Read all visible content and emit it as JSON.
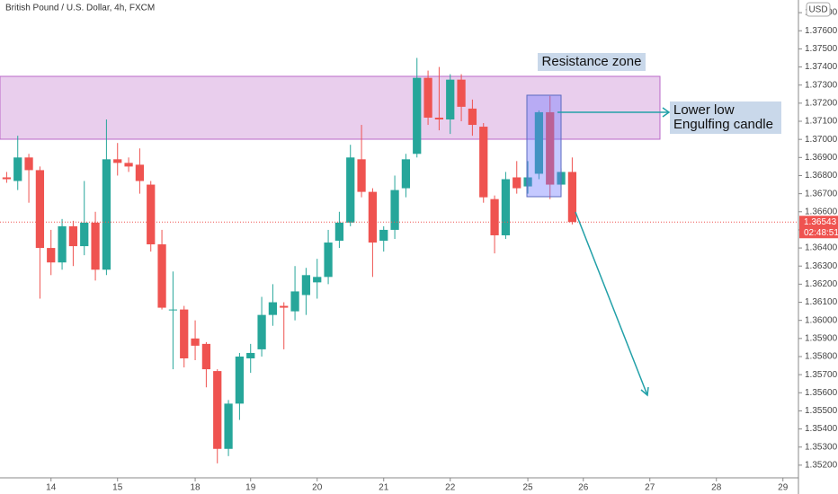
{
  "chart_data": {
    "type": "candlestick",
    "title": "British Pound / U.S. Dollar, 4h, FXCM",
    "currency": "USD",
    "timer": "02:48:51",
    "last_price": 1.36543,
    "annotations": [
      "Resistance zone",
      "Lower low",
      "Engulfing candle"
    ],
    "up_color": "#26a69a",
    "down_color": "#ef5350",
    "grid": false,
    "x": [
      0,
      1,
      2,
      3,
      4,
      5,
      6,
      7,
      8,
      9,
      10,
      11,
      12,
      13,
      14,
      15,
      16,
      17,
      18,
      19,
      20,
      21,
      22,
      23,
      24,
      25,
      26,
      27,
      28,
      29,
      30,
      31,
      32,
      33,
      34,
      35,
      36,
      37,
      38,
      39,
      40,
      41,
      42,
      43,
      44,
      45,
      46,
      47,
      48,
      49,
      50,
      51
    ],
    "open": [
      1.3679,
      1.3677,
      1.369,
      1.3683,
      1.364,
      1.3632,
      1.3652,
      1.3641,
      1.3654,
      1.3628,
      1.3689,
      1.3687,
      1.3686,
      1.3675,
      1.3642,
      1.3606,
      1.3606,
      1.359,
      1.3587,
      1.3572,
      1.3529,
      1.3554,
      1.3579,
      1.3584,
      1.3603,
      1.3608,
      1.3605,
      1.3614,
      1.3621,
      1.3624,
      1.3644,
      1.3654,
      1.3689,
      1.3671,
      1.3644,
      1.365,
      1.3673,
      1.3692,
      1.3734,
      1.3712,
      1.3711,
      1.3733,
      1.3717,
      1.3707,
      1.3667,
      1.3647,
      1.3679,
      1.3674,
      1.3681,
      1.3715,
      1.3675,
      1.3682
    ],
    "high": [
      1.3682,
      1.3702,
      1.3692,
      1.3685,
      1.365,
      1.3656,
      1.3655,
      1.3677,
      1.366,
      1.3711,
      1.3698,
      1.369,
      1.3695,
      1.3677,
      1.365,
      1.3627,
      1.3608,
      1.36,
      1.3588,
      1.3573,
      1.3556,
      1.3582,
      1.3587,
      1.3613,
      1.362,
      1.361,
      1.363,
      1.3629,
      1.3634,
      1.365,
      1.366,
      1.3697,
      1.3708,
      1.3673,
      1.3652,
      1.368,
      1.3692,
      1.3745,
      1.3738,
      1.374,
      1.3736,
      1.3736,
      1.3722,
      1.3709,
      1.3669,
      1.3682,
      1.3688,
      1.3688,
      1.3716,
      1.3724,
      1.3684,
      1.369
    ],
    "low": [
      1.3676,
      1.3672,
      1.3665,
      1.3612,
      1.3625,
      1.3628,
      1.363,
      1.3636,
      1.3622,
      1.3625,
      1.368,
      1.3682,
      1.367,
      1.3638,
      1.3606,
      1.3573,
      1.3574,
      1.3578,
      1.3563,
      1.3521,
      1.3525,
      1.3545,
      1.3571,
      1.358,
      1.3597,
      1.3584,
      1.36,
      1.3603,
      1.3612,
      1.362,
      1.364,
      1.3652,
      1.3668,
      1.3624,
      1.3638,
      1.3645,
      1.3668,
      1.369,
      1.3708,
      1.3705,
      1.3703,
      1.371,
      1.3702,
      1.3665,
      1.3637,
      1.3645,
      1.367,
      1.367,
      1.3678,
      1.3667,
      1.3672,
      1.3653
    ],
    "close": [
      1.3678,
      1.369,
      1.3683,
      1.364,
      1.3632,
      1.3652,
      1.3641,
      1.3654,
      1.3628,
      1.3689,
      1.3687,
      1.3685,
      1.3677,
      1.3642,
      1.3607,
      1.3606,
      1.3579,
      1.3586,
      1.3573,
      1.3529,
      1.3554,
      1.358,
      1.3582,
      1.3603,
      1.361,
      1.3607,
      1.3616,
      1.3625,
      1.3624,
      1.3643,
      1.3654,
      1.369,
      1.3671,
      1.3643,
      1.365,
      1.3672,
      1.3689,
      1.3734,
      1.3712,
      1.3711,
      1.3733,
      1.3718,
      1.3708,
      1.3668,
      1.3647,
      1.3678,
      1.3673,
      1.3679,
      1.3715,
      1.3675,
      1.3682,
      1.36543
    ],
    "xlim": [
      -0.6,
      71.4
    ],
    "xticks": [
      {
        "value": 4,
        "label": "14"
      },
      {
        "value": 10,
        "label": "15"
      },
      {
        "value": 17,
        "label": "18"
      },
      {
        "value": 22,
        "label": "19"
      },
      {
        "value": 28,
        "label": "20"
      },
      {
        "value": 34,
        "label": "21"
      },
      {
        "value": 40,
        "label": "22"
      },
      {
        "value": 47,
        "label": "25"
      },
      {
        "value": 52,
        "label": "26"
      },
      {
        "value": 58,
        "label": "27"
      },
      {
        "value": 64,
        "label": "28"
      },
      {
        "value": 70,
        "label": "29"
      }
    ],
    "ylim": [
      1.3513,
      1.3777
    ],
    "yticks": [
      {
        "value": 1.352,
        "label": "1.35200"
      },
      {
        "value": 1.353,
        "label": "1.35300"
      },
      {
        "value": 1.354,
        "label": "1.35400"
      },
      {
        "value": 1.355,
        "label": "1.35500"
      },
      {
        "value": 1.356,
        "label": "1.35600"
      },
      {
        "value": 1.357,
        "label": "1.35700"
      },
      {
        "value": 1.358,
        "label": "1.35800"
      },
      {
        "value": 1.359,
        "label": "1.35900"
      },
      {
        "value": 1.36,
        "label": "1.36000"
      },
      {
        "value": 1.361,
        "label": "1.36100"
      },
      {
        "value": 1.362,
        "label": "1.36200"
      },
      {
        "value": 1.363,
        "label": "1.36300"
      },
      {
        "value": 1.364,
        "label": "1.36400"
      },
      {
        "value": 1.365,
        "label": "1.36500"
      },
      {
        "value": 1.366,
        "label": "1.36600"
      },
      {
        "value": 1.367,
        "label": "1.36700"
      },
      {
        "value": 1.368,
        "label": "1.36800"
      },
      {
        "value": 1.369,
        "label": "1.36900"
      },
      {
        "value": 1.37,
        "label": "1.37000"
      },
      {
        "value": 1.371,
        "label": "1.37100"
      },
      {
        "value": 1.372,
        "label": "1.37200"
      },
      {
        "value": 1.373,
        "label": "1.37300"
      },
      {
        "value": 1.374,
        "label": "1.37400"
      },
      {
        "value": 1.375,
        "label": "1.37500"
      },
      {
        "value": 1.376,
        "label": "1.37600"
      },
      {
        "value": 1.377,
        "label": "1.37700"
      }
    ]
  }
}
